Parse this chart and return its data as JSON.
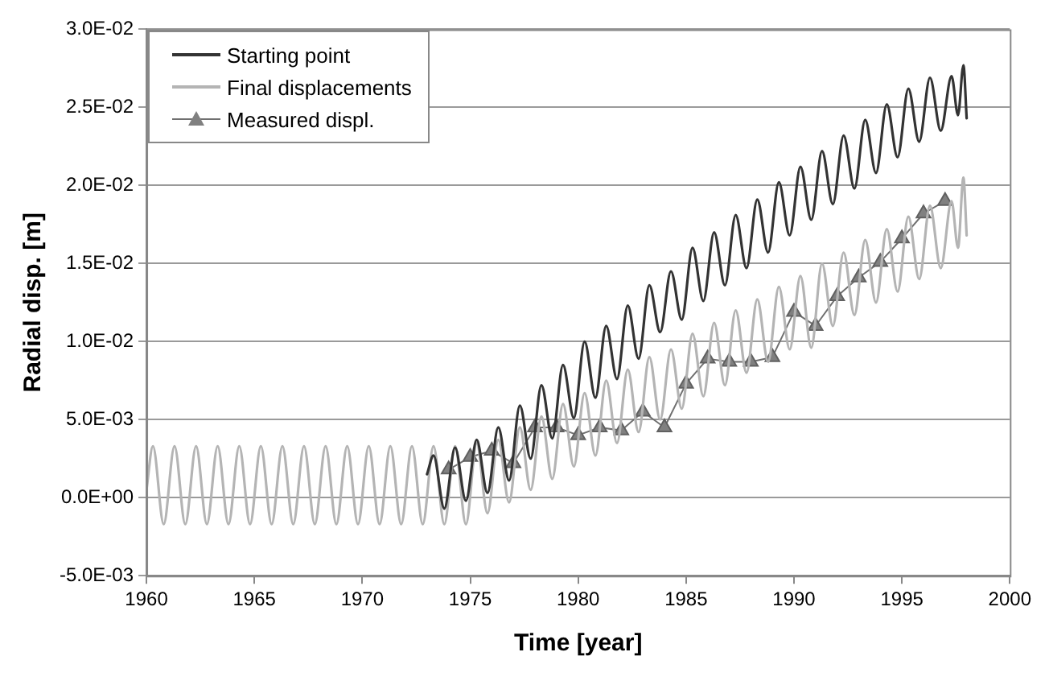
{
  "chart_data": {
    "type": "line",
    "xlabel": "Time [year]",
    "ylabel": "Radial disp. [m]",
    "xlim": [
      1960,
      2000
    ],
    "xticks": [
      1960,
      1965,
      1970,
      1975,
      1980,
      1985,
      1990,
      1995,
      2000
    ],
    "ylim": [
      -0.005,
      0.03
    ],
    "yticks": [
      {
        "value": -0.005,
        "label": "-5.0E-03"
      },
      {
        "value": 0,
        "label": "0.0E+00"
      },
      {
        "value": 0.005,
        "label": "5.0E-03"
      },
      {
        "value": 0.01,
        "label": "1.0E-02"
      },
      {
        "value": 0.015,
        "label": "1.5E-02"
      },
      {
        "value": 0.02,
        "label": "2.0E-02"
      },
      {
        "value": 0.025,
        "label": "2.5E-02"
      },
      {
        "value": 0.03,
        "label": "3.0E-02"
      }
    ],
    "grid": "y",
    "legend": "top left",
    "line_style": "solid",
    "series": [
      {
        "name": "Starting point",
        "color": "#333333",
        "marker": "none",
        "x": [
          1973.0,
          1973.3,
          1973.8,
          1974.3,
          1974.8,
          1975.3,
          1975.8,
          1976.3,
          1976.8,
          1977.3,
          1977.8,
          1978.3,
          1978.8,
          1979.3,
          1979.8,
          1980.3,
          1980.8,
          1981.3,
          1981.8,
          1982.3,
          1982.8,
          1983.3,
          1983.8,
          1984.3,
          1984.8,
          1985.3,
          1985.8,
          1986.3,
          1986.8,
          1987.3,
          1987.8,
          1988.3,
          1988.8,
          1989.3,
          1989.8,
          1990.3,
          1990.8,
          1991.3,
          1991.8,
          1992.3,
          1992.8,
          1993.3,
          1993.8,
          1994.3,
          1994.8,
          1995.3,
          1995.8,
          1996.3,
          1996.8,
          1997.3,
          1997.6,
          1997.85,
          1998.0
        ],
        "values": [
          0.0015,
          0.0027,
          -0.0007,
          0.0032,
          -0.0002,
          0.0037,
          0.0003,
          0.0045,
          0.0011,
          0.0059,
          0.0025,
          0.0072,
          0.0038,
          0.0085,
          0.0051,
          0.01,
          0.0064,
          0.011,
          0.0076,
          0.0123,
          0.0089,
          0.0136,
          0.0106,
          0.0145,
          0.0114,
          0.016,
          0.0126,
          0.017,
          0.0136,
          0.0181,
          0.0147,
          0.0191,
          0.0157,
          0.0202,
          0.0168,
          0.0212,
          0.0178,
          0.0222,
          0.0188,
          0.0232,
          0.0198,
          0.0242,
          0.0208,
          0.0252,
          0.0218,
          0.0262,
          0.0228,
          0.0269,
          0.0235,
          0.027,
          0.0245,
          0.0277,
          0.0243
        ]
      },
      {
        "name": "Final displacements",
        "color": "#b4b4b4",
        "marker": "none",
        "x": [
          1960.0,
          1960.3,
          1960.8,
          1961.3,
          1961.8,
          1962.3,
          1962.8,
          1963.3,
          1963.8,
          1964.3,
          1964.8,
          1965.3,
          1965.8,
          1966.3,
          1966.8,
          1967.3,
          1967.8,
          1968.3,
          1968.8,
          1969.3,
          1969.8,
          1970.3,
          1970.8,
          1971.3,
          1971.8,
          1972.3,
          1972.8,
          1973.3,
          1973.8,
          1974.3,
          1974.8,
          1975.3,
          1975.8,
          1976.3,
          1976.8,
          1977.3,
          1977.8,
          1978.3,
          1978.8,
          1979.3,
          1979.8,
          1980.3,
          1980.8,
          1981.3,
          1981.8,
          1982.3,
          1982.8,
          1983.3,
          1983.8,
          1984.3,
          1984.8,
          1985.3,
          1985.8,
          1986.3,
          1986.8,
          1987.3,
          1987.8,
          1988.3,
          1988.8,
          1989.3,
          1989.8,
          1990.3,
          1990.8,
          1991.3,
          1991.8,
          1992.3,
          1992.8,
          1993.3,
          1993.8,
          1994.3,
          1994.8,
          1995.3,
          1995.8,
          1996.3,
          1996.8,
          1997.3,
          1997.6,
          1997.85,
          1998.0
        ],
        "values": [
          0.0005,
          0.0033,
          -0.0017,
          0.0033,
          -0.0017,
          0.0033,
          -0.0017,
          0.0033,
          -0.0017,
          0.0033,
          -0.0017,
          0.0033,
          -0.0017,
          0.0033,
          -0.0017,
          0.0033,
          -0.0017,
          0.0033,
          -0.0017,
          0.0033,
          -0.0017,
          0.0033,
          -0.0017,
          0.0033,
          -0.0017,
          0.0033,
          -0.0017,
          0.0033,
          -0.0017,
          0.0033,
          -0.0017,
          0.0035,
          -0.001,
          0.0037,
          -0.0003,
          0.0045,
          0.0005,
          0.0052,
          0.0012,
          0.006,
          0.002,
          0.0067,
          0.0027,
          0.0075,
          0.0035,
          0.0082,
          0.0042,
          0.009,
          0.005,
          0.0095,
          0.0057,
          0.0105,
          0.0065,
          0.0112,
          0.0072,
          0.012,
          0.008,
          0.0127,
          0.0087,
          0.0135,
          0.0095,
          0.0142,
          0.0096,
          0.015,
          0.011,
          0.0157,
          0.0117,
          0.0165,
          0.0125,
          0.0172,
          0.0132,
          0.018,
          0.014,
          0.0187,
          0.0147,
          0.019,
          0.016,
          0.0205,
          0.0168
        ]
      },
      {
        "name": "Measured displ.",
        "color": "#707070",
        "marker": "triangle",
        "x": [
          1974,
          1975,
          1976,
          1977,
          1978,
          1979,
          1980,
          1981,
          1982,
          1983,
          1984,
          1985,
          1986,
          1987,
          1988,
          1989,
          1990,
          1991,
          1992,
          1993,
          1994,
          1995,
          1996,
          1997
        ],
        "values": [
          0.0018,
          0.0026,
          0.003,
          0.0022,
          0.0045,
          0.0045,
          0.004,
          0.0045,
          0.0043,
          0.0055,
          0.0045,
          0.0073,
          0.0089,
          0.0087,
          0.0087,
          0.009,
          0.0119,
          0.011,
          0.0129,
          0.0141,
          0.0151,
          0.0166,
          0.0182,
          0.019
        ]
      }
    ]
  }
}
